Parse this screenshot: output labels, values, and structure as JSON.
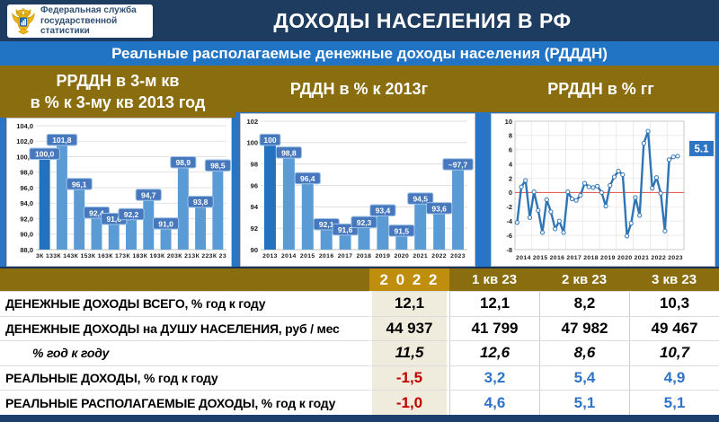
{
  "colors": {
    "c-page": "#2a74c6",
    "c-navy": "#1e3c5f",
    "c-subtitle": "#2173c4",
    "c-gold": "#8a6d0e",
    "c-gold2": "#bf8e0d",
    "c-beige": "#efecdd",
    "c-red": "#c00000",
    "c-blue": "#2e74c9",
    "bar": "#5b9bd5",
    "bar_first": "#2272c0",
    "label_box": "#4778bd",
    "label_border": "#9dc3e6",
    "line": "#2e75b6",
    "zero_line": "#e8625a",
    "line_label_box": "#2e74c4"
  },
  "header": {
    "logo_line1": "Федеральная служба",
    "logo_line2": "государственной статистики",
    "title": "ДОХОДЫ НАСЕЛЕНИЯ В РФ"
  },
  "subtitle": "Реальные располагаемые денежные доходы населения (РДДДН)",
  "banners": [
    {
      "line1": "РРДДН в 3-м кв",
      "line2": "в % к 3-му кв 2013 год"
    },
    {
      "line1": "РДДН в % к 2013г"
    },
    {
      "line1": "РРДДН в % гг"
    }
  ],
  "chart_data": [
    {
      "type": "bar",
      "title": "РРДДН в 3-м кв в % к 3-му кв 2013 год",
      "categories": [
        "3К 13",
        "3К 14",
        "3К 15",
        "3К 16",
        "3К 17",
        "3К 18",
        "3К 19",
        "3К 20",
        "3К 21",
        "3К 22",
        "3К 23"
      ],
      "values": [
        100.0,
        101.8,
        96.1,
        92.4,
        91.6,
        92.2,
        94.7,
        91.0,
        98.9,
        93.8,
        98.5
      ],
      "labels": [
        "100,0",
        "101,8",
        "96,1",
        "92,4",
        "91,6",
        "92,2",
        "94,7",
        "91,0",
        "98,9",
        "93,8",
        "98,5"
      ],
      "ylim": [
        88,
        104
      ],
      "ystep": 2,
      "y_decimals": 1,
      "grid": true,
      "legend": "none"
    },
    {
      "type": "bar",
      "title": "РДДН в % к 2013г",
      "categories": [
        "2013",
        "2014",
        "2015",
        "2016",
        "2017",
        "2018",
        "2019",
        "2020",
        "2021",
        "2022",
        "2023"
      ],
      "values": [
        100,
        98.8,
        96.4,
        92.1,
        91.6,
        92.3,
        93.4,
        91.5,
        94.5,
        93.6,
        97.7
      ],
      "labels": [
        "100",
        "98,8",
        "96,4",
        "92,1",
        "91,6",
        "92,3",
        "93,4",
        "91,5",
        "94,5",
        "93,6",
        "~97,7"
      ],
      "ylim": [
        90,
        102
      ],
      "ystep": 2,
      "y_decimals": 0,
      "grid": true,
      "legend": "none"
    },
    {
      "type": "line",
      "title": "РРДДН в % гг",
      "x_years": [
        "2014",
        "2015",
        "2016",
        "2017",
        "2018",
        "2019",
        "2020",
        "2021",
        "2022",
        "2023"
      ],
      "x_note": "quarterly points, 2014 Q1 - 2023 Q3",
      "values": [
        -4.2,
        0.8,
        1.7,
        -3.5,
        0.1,
        -2.5,
        -5.6,
        -1.0,
        -2.7,
        -5.1,
        -4.0,
        -5.6,
        0.1,
        -0.9,
        -1.1,
        -0.4,
        1.3,
        0.8,
        0.7,
        0.9,
        0.0,
        -1.9,
        1.0,
        2.2,
        3.0,
        2.5,
        -6.1,
        -4.3,
        -0.7,
        -3.2,
        6.9,
        8.6,
        0.6,
        2.1,
        -0.1,
        -5.4,
        4.6,
        5.0,
        5.1
      ],
      "ylim": [
        -8,
        10
      ],
      "ystep": 2,
      "zero_line": true,
      "last_label": "5.1",
      "grid": true,
      "legend": "none"
    }
  ],
  "table": {
    "col_headers": [
      "2 0 2 2",
      "1 кв 23",
      "2 кв 23",
      "3 кв 23"
    ],
    "rows": [
      {
        "label": "ДЕНЕЖНЫЕ ДОХОДЫ ВСЕГО, % год к году",
        "values": [
          "12,1",
          "12,1",
          "8,2",
          "10,3"
        ]
      },
      {
        "label": "ДЕНЕЖНЫЕ ДОХОДЫ на ДУШУ НАСЕЛЕНИЯ, руб / мес",
        "values": [
          "44 937",
          "41 799",
          "47 982",
          "49 467"
        ]
      },
      {
        "label": "% год к году",
        "values": [
          "11,5",
          "12,6",
          "8,6",
          "10,7"
        ]
      },
      {
        "label": "РЕАЛЬНЫЕ ДОХОДЫ, % год к году",
        "values": [
          "-1,5",
          "3,2",
          "5,4",
          "4,9"
        ]
      },
      {
        "label": "РЕАЛЬНЫЕ РАСПОЛАГАЕМЫЕ ДОХОДЫ, % год к году",
        "values": [
          "-1,0",
          "4,6",
          "5,1",
          "5,1"
        ]
      }
    ]
  }
}
